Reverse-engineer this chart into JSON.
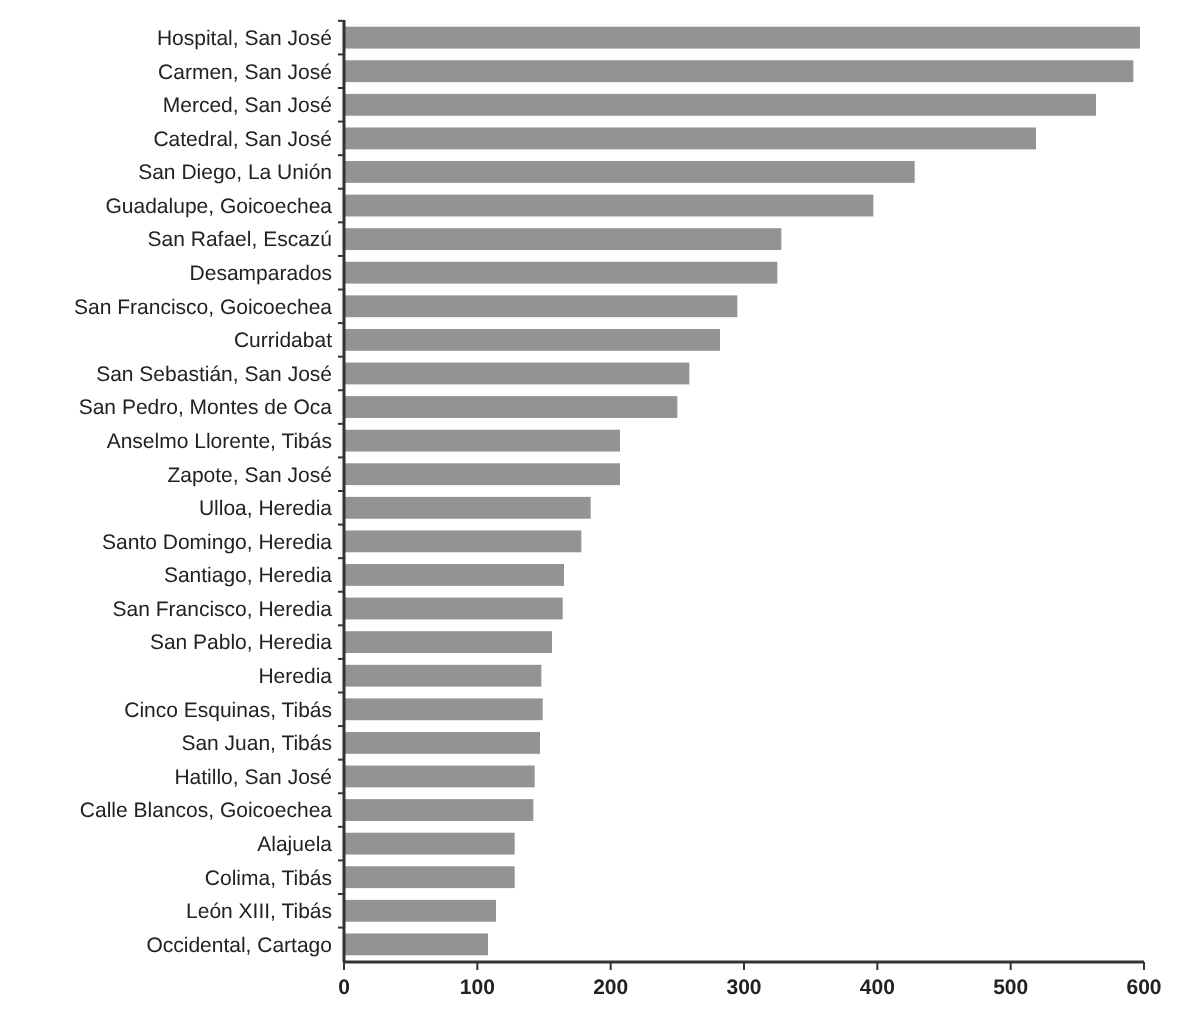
{
  "chart_data": {
    "type": "bar",
    "orientation": "horizontal",
    "color": "#939393",
    "categories": [
      "Hospital, San José",
      "Carmen, San José",
      "Merced, San José",
      "Catedral, San José",
      "San Diego, La Unión",
      "Guadalupe, Goicoechea",
      "San Rafael, Escazú",
      "Desamparados",
      "San Francisco, Goicoechea",
      "Curridabat",
      "San Sebastián, San José",
      "San Pedro, Montes de Oca",
      "Anselmo Llorente, Tibás",
      "Zapote, San José",
      "Ulloa, Heredia",
      "Santo Domingo, Heredia",
      "Santiago, Heredia",
      "San Francisco, Heredia",
      "San Pablo, Heredia",
      "Heredia",
      "Cinco Esquinas, Tibás",
      "San Juan, Tibás",
      "Hatillo, San José",
      "Calle Blancos, Goicoechea",
      "Alajuela",
      "Colima, Tibás",
      "León XIII, Tibás",
      "Occidental, Cartago"
    ],
    "values": [
      597,
      592,
      564,
      519,
      428,
      397,
      328,
      325,
      295,
      282,
      259,
      250,
      207,
      207,
      185,
      178,
      165,
      164,
      156,
      148,
      149,
      147,
      143,
      142,
      128,
      128,
      114,
      108
    ],
    "xlim": [
      0,
      600
    ],
    "xticks": [
      0,
      100,
      200,
      300,
      400,
      500,
      600
    ],
    "grid": false
  }
}
